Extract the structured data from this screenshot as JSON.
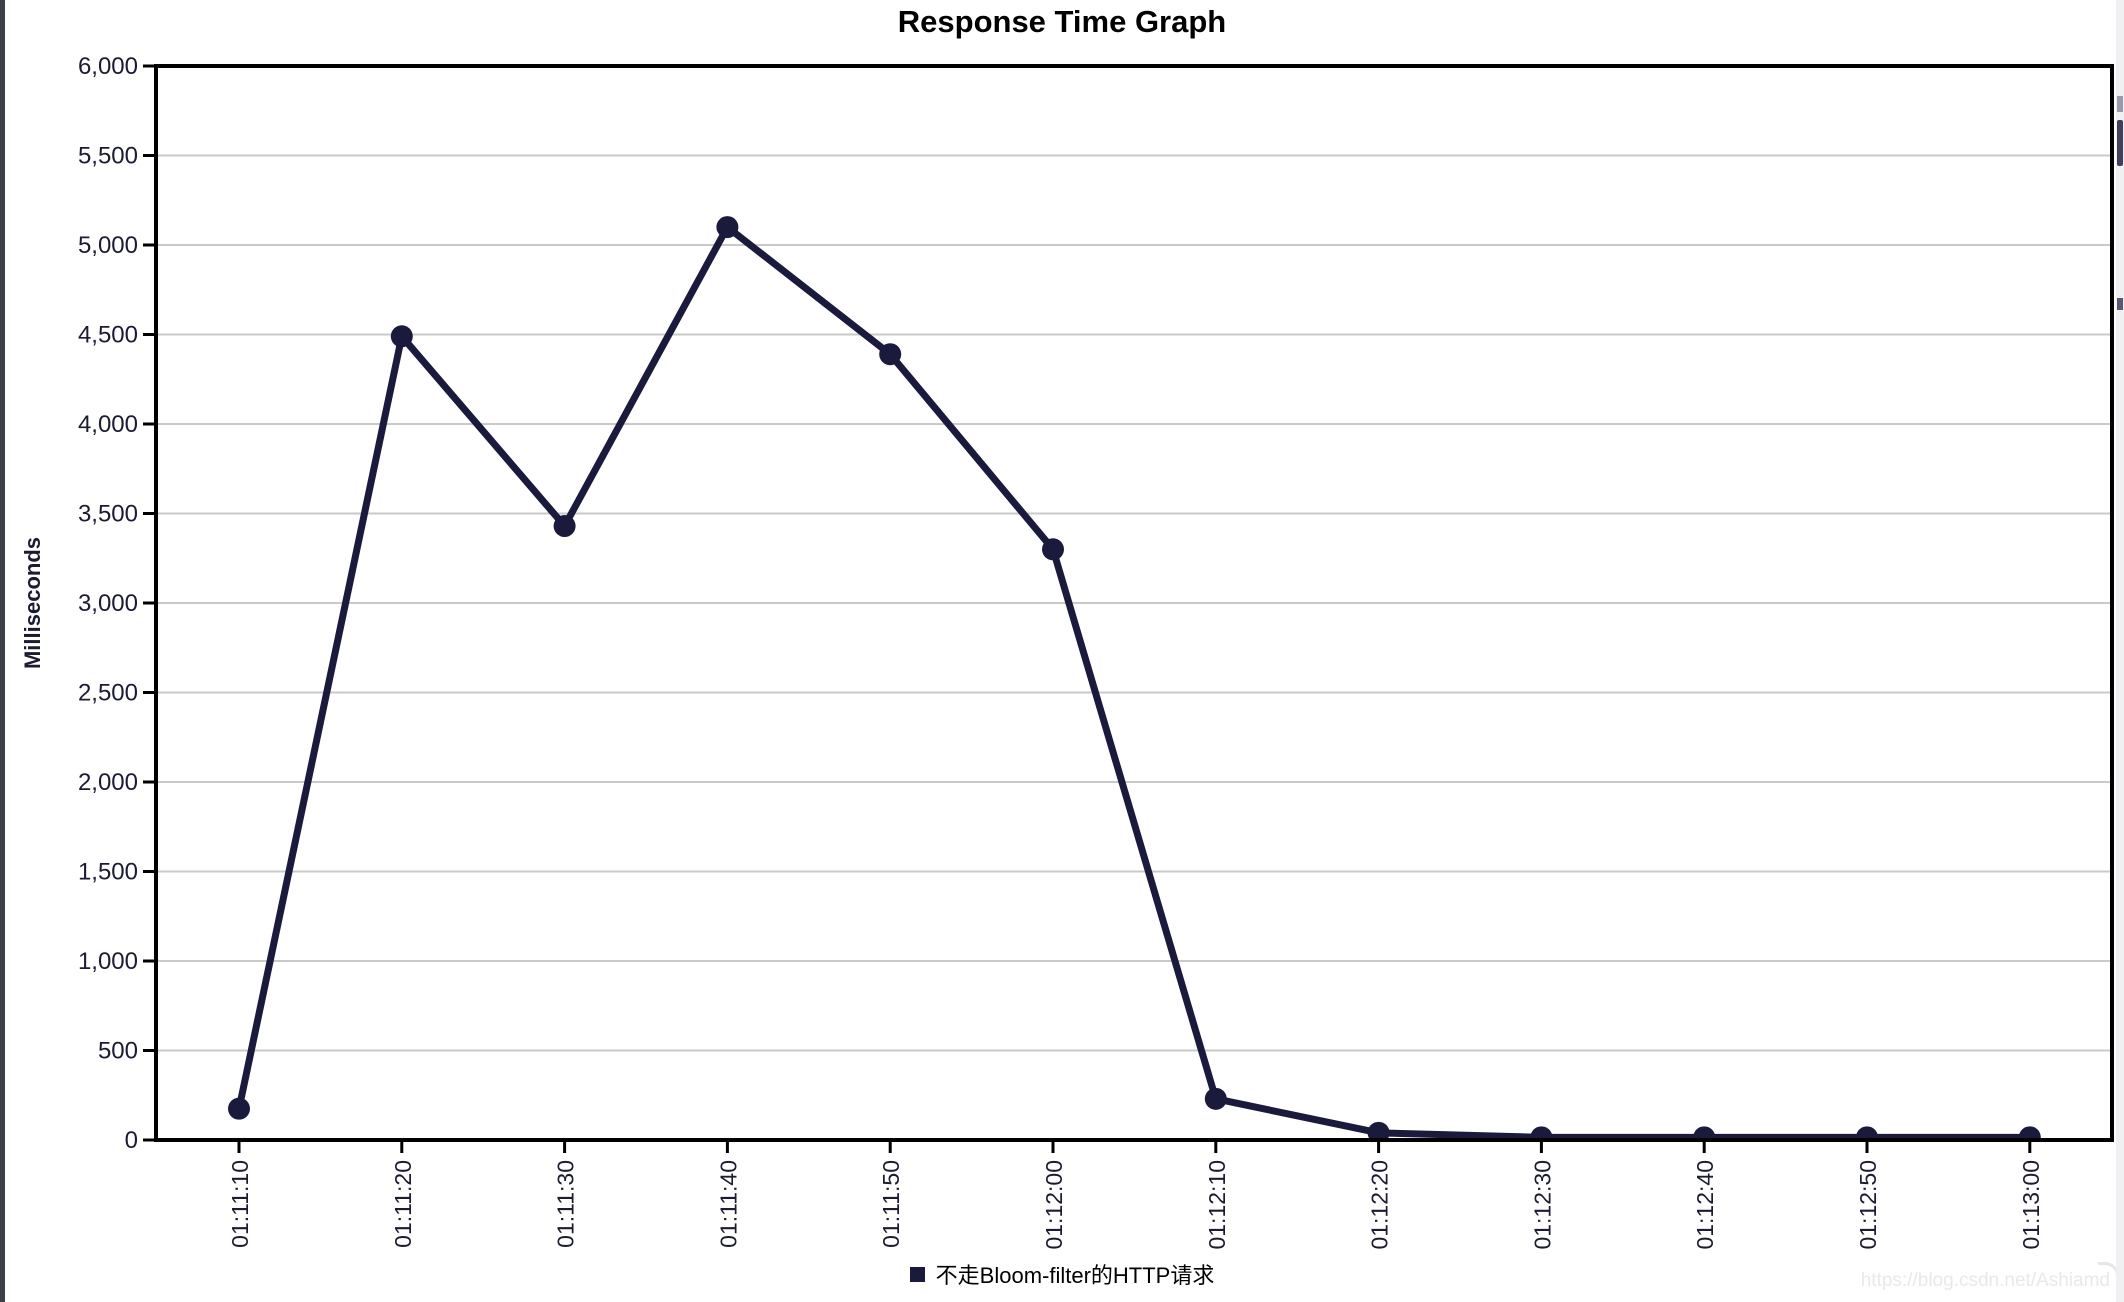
{
  "chart_data": {
    "type": "line",
    "title": "Response Time Graph",
    "xlabel": "",
    "ylabel": "Milliseconds",
    "categories": [
      "01:11:10",
      "01:11:20",
      "01:11:30",
      "01:11:40",
      "01:11:50",
      "01:12:00",
      "01:12:10",
      "01:12:20",
      "01:12:30",
      "01:12:40",
      "01:12:50",
      "01:13:00"
    ],
    "series": [
      {
        "name": "不走Bloom-filter的HTTP请求",
        "color": "#1a1a3c",
        "values": [
          175,
          4490,
          3430,
          5100,
          4390,
          3300,
          230,
          40,
          15,
          15,
          15,
          15
        ]
      }
    ],
    "ylim": [
      0,
      6000
    ],
    "ytick_step": 500,
    "grid": "horizontal",
    "legend_position": "bottom",
    "x_tick_rotation": -90
  },
  "watermark": {
    "text": "https://blog.csdn.net/Ashiamd"
  },
  "colors": {
    "series": "#1a1a3c",
    "grid": "#c9c9c9",
    "axis": "#000000",
    "tick_label": "#1b1b32",
    "watermark_text": "#e9e9e9"
  }
}
